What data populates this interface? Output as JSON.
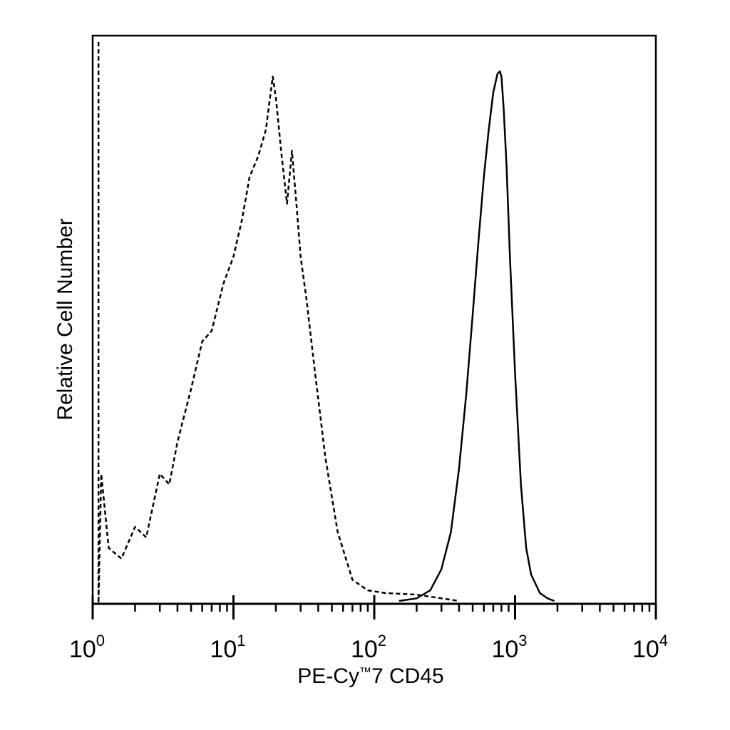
{
  "chart_data": {
    "type": "histogram",
    "title": "",
    "xlabel": "PE-Cy™7 CD45",
    "ylabel": "Relative Cell Number",
    "x_scale": "log",
    "xlim": [
      1,
      10000
    ],
    "ylim": [
      0,
      1
    ],
    "x_ticks": [
      {
        "base": "10",
        "exp": "0"
      },
      {
        "base": "10",
        "exp": "1"
      },
      {
        "base": "10",
        "exp": "2"
      },
      {
        "base": "10",
        "exp": "3"
      },
      {
        "base": "10",
        "exp": "4"
      }
    ],
    "grid": false,
    "legend": "none",
    "series": [
      {
        "style": "dashed",
        "color": "#000000",
        "x": [
          1.1,
          1.15,
          1.3,
          1.6,
          2.0,
          2.4,
          3.0,
          3.5,
          4.0,
          5.0,
          6.0,
          7.0,
          8.5,
          10,
          11.5,
          13,
          15,
          17,
          19,
          20,
          22,
          24,
          26,
          28,
          30,
          33,
          38,
          45,
          55,
          70,
          90,
          120,
          200,
          300,
          400
        ],
        "values": [
          0.0,
          0.24,
          0.1,
          0.08,
          0.14,
          0.12,
          0.24,
          0.22,
          0.3,
          0.4,
          0.49,
          0.51,
          0.6,
          0.65,
          0.72,
          0.8,
          0.84,
          0.89,
          0.99,
          0.95,
          0.84,
          0.75,
          0.85,
          0.75,
          0.65,
          0.57,
          0.43,
          0.27,
          0.13,
          0.04,
          0.02,
          0.015,
          0.012,
          0.005,
          0.0
        ]
      },
      {
        "style": "solid",
        "color": "#000000",
        "x": [
          150,
          200,
          250,
          300,
          350,
          400,
          450,
          500,
          550,
          600,
          650,
          700,
          750,
          780,
          800,
          830,
          870,
          920,
          1000,
          1100,
          1200,
          1300,
          1500,
          1700,
          1900
        ],
        "values": [
          0.0,
          0.005,
          0.02,
          0.06,
          0.13,
          0.25,
          0.39,
          0.54,
          0.68,
          0.8,
          0.89,
          0.96,
          0.995,
          1.0,
          0.99,
          0.93,
          0.82,
          0.65,
          0.43,
          0.22,
          0.1,
          0.05,
          0.015,
          0.005,
          0.0
        ]
      }
    ]
  }
}
